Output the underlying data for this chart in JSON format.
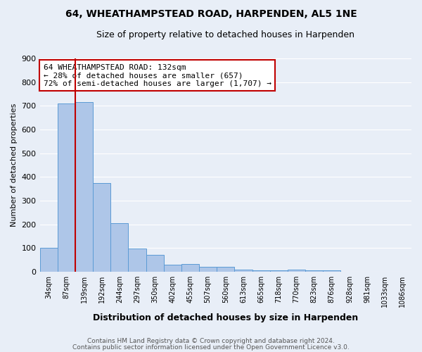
{
  "title": "64, WHEATHAMPSTEAD ROAD, HARPENDEN, AL5 1NE",
  "subtitle": "Size of property relative to detached houses in Harpenden",
  "xlabel": "Distribution of detached houses by size in Harpenden",
  "ylabel": "Number of detached properties",
  "footnote1": "Contains HM Land Registry data © Crown copyright and database right 2024.",
  "footnote2": "Contains public sector information licensed under the Open Government Licence v3.0.",
  "categories": [
    "34sqm",
    "87sqm",
    "139sqm",
    "192sqm",
    "244sqm",
    "297sqm",
    "350sqm",
    "402sqm",
    "455sqm",
    "507sqm",
    "560sqm",
    "613sqm",
    "665sqm",
    "718sqm",
    "770sqm",
    "823sqm",
    "876sqm",
    "928sqm",
    "981sqm",
    "1033sqm",
    "1086sqm"
  ],
  "values": [
    101,
    710,
    715,
    375,
    205,
    97,
    70,
    31,
    33,
    20,
    21,
    10,
    7,
    5,
    10,
    5,
    7,
    0,
    0,
    0,
    0
  ],
  "bar_color": "#aec6e8",
  "bar_edge_color": "#5b9bd5",
  "highlight_bar_index": 2,
  "highlight_color": "#c00000",
  "annotation_title": "64 WHEATHAMPSTEAD ROAD: 132sqm",
  "annotation_line1": "← 28% of detached houses are smaller (657)",
  "annotation_line2": "72% of semi-detached houses are larger (1,707) →",
  "annotation_box_color": "#c00000",
  "ylim": [
    0,
    900
  ],
  "yticks": [
    0,
    100,
    200,
    300,
    400,
    500,
    600,
    700,
    800,
    900
  ],
  "background_color": "#e8eef7",
  "plot_bg_color": "#e8eef7"
}
